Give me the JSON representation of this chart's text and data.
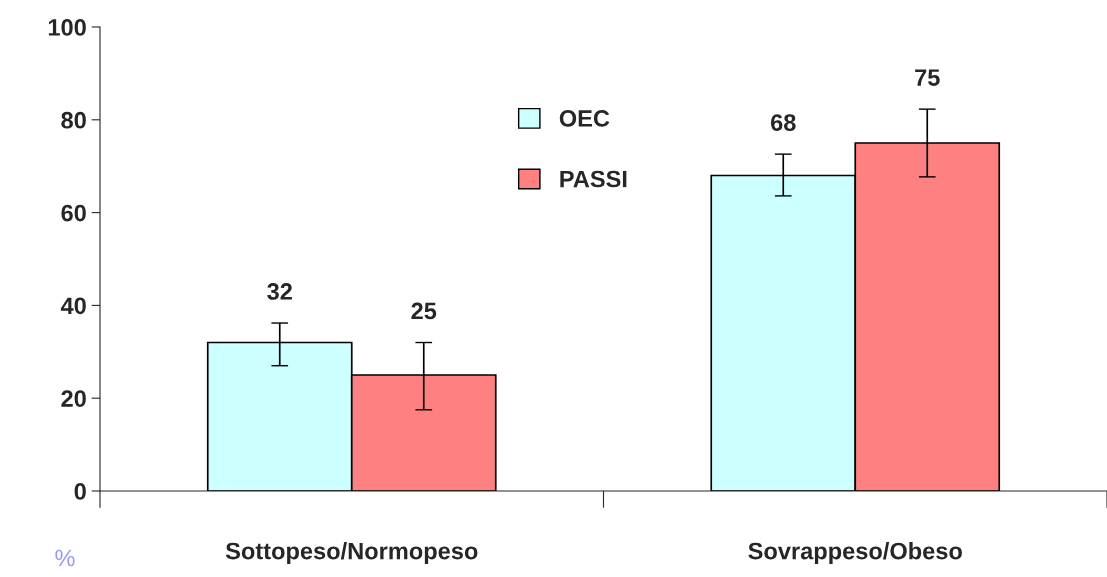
{
  "chart_data": {
    "type": "bar",
    "categories": [
      "Sottopeso/Normopeso",
      "Sovrappeso/Obeso"
    ],
    "series": [
      {
        "name": "OEC",
        "color": "#ccffff",
        "values": [
          32,
          68
        ],
        "errors": [
          [
            27,
            36.2
          ],
          [
            63.6,
            72.6
          ]
        ]
      },
      {
        "name": "PASSI",
        "color": "#ff8080",
        "values": [
          25,
          75
        ],
        "errors": [
          [
            17.5,
            32
          ],
          [
            67.7,
            82.3
          ]
        ]
      }
    ],
    "ylim": [
      0,
      100
    ],
    "yticks": [
      0,
      20,
      40,
      60,
      80,
      100
    ],
    "data_labels": true,
    "legend": "top",
    "grid": false,
    "annotations": [
      "%"
    ]
  }
}
